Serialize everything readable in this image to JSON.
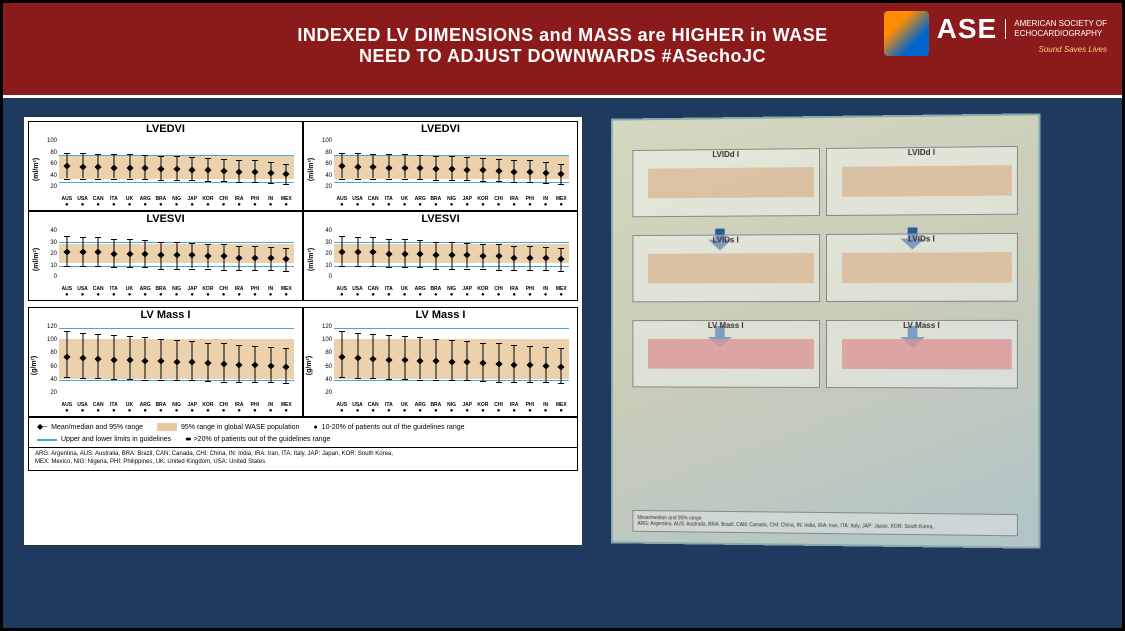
{
  "header": {
    "title_l1": "INDEXED LV DIMENSIONS and MASS are HIGHER in WASE",
    "title_l2": "NEED TO ADJUST DOWNWARDS  #ASechoJC",
    "logo_main": "ASE",
    "logo_sub_l1": "AMERICAN SOCIETY OF",
    "logo_sub_l2": "ECHOCARDIOGRAPHY",
    "logo_tag": "Sound Saves Lives"
  },
  "countries": [
    "AUS",
    "USA",
    "CAN",
    "ITA",
    "UK",
    "ARG",
    "BRA",
    "NIG",
    "JAP",
    "KOR",
    "CHI",
    "IRA",
    "PHI",
    "IN",
    "MEX"
  ],
  "charts": {
    "lvedvi": {
      "title": "LVEDVI",
      "unit": "(ml/m²)",
      "ymin": 20,
      "ymax": 100,
      "yticks": [
        20,
        40,
        60,
        80,
        100
      ],
      "shade_lo": 40,
      "shade_hi": 75,
      "line_lo": 35,
      "line_hi": 75,
      "means": [
        58,
        57,
        57,
        56,
        56,
        55,
        54,
        54,
        53,
        52,
        51,
        50,
        50,
        48,
        46
      ],
      "err_lo": [
        40,
        40,
        40,
        40,
        40,
        39,
        38,
        38,
        38,
        37,
        36,
        35,
        35,
        34,
        32
      ],
      "err_hi": [
        78,
        78,
        77,
        76,
        76,
        75,
        74,
        73,
        72,
        70,
        69,
        68,
        67,
        65,
        62
      ]
    },
    "lvesvi": {
      "title": "LVESVI",
      "unit": "(ml/m²)",
      "ymin": 0,
      "ymax": 40,
      "yticks": [
        0,
        10,
        20,
        30,
        40
      ],
      "shade_lo": 14,
      "shade_hi": 28,
      "line_lo": 12,
      "line_hi": 30,
      "means": [
        22,
        22,
        22,
        21,
        21,
        21,
        20,
        20,
        20,
        19,
        19,
        18,
        18,
        18,
        17
      ],
      "err_lo": [
        12,
        12,
        12,
        11,
        11,
        11,
        10,
        10,
        10,
        10,
        9,
        9,
        9,
        9,
        8
      ],
      "err_hi": [
        34,
        33,
        33,
        32,
        32,
        31,
        30,
        30,
        29,
        28,
        28,
        27,
        27,
        26,
        25
      ]
    },
    "lvmassi": {
      "title": "LV Mass I",
      "unit": "(g/m²)",
      "ymin": 20,
      "ymax": 120,
      "yticks": [
        20,
        40,
        60,
        80,
        100,
        120
      ],
      "shade_lo": 45,
      "shade_hi": 100,
      "line_lo": 44,
      "line_hi": 115,
      "means": [
        75,
        74,
        73,
        72,
        71,
        70,
        70,
        69,
        68,
        67,
        66,
        65,
        64,
        63,
        62
      ],
      "err_lo": [
        48,
        47,
        47,
        46,
        46,
        45,
        45,
        44,
        44,
        43,
        42,
        42,
        41,
        41,
        40
      ],
      "err_hi": [
        110,
        108,
        107,
        105,
        104,
        102,
        100,
        99,
        97,
        95,
        94,
        92,
        90,
        89,
        87
      ]
    }
  },
  "legend": {
    "l1": "Mean/median and 95% range",
    "l2": "Upper and lower limits in guidelines",
    "l3": "95% range in global WASE population",
    "l4": "10-20% of patients out of the guidelines range",
    "l5": ">20% of patients out of the guidelines range"
  },
  "footnote": {
    "l1": "ARG: Argentina, AUS: Australia, BRA: Brazil, CAN: Canada, CHI: China, IN: India, IRA: Iran, ITA: Italy, JAP: Japan, KOR: South Korea,",
    "l2": "MEX: Mexico, NIG: Nigeria, PHI: Philippines, UK: United Kingdom, USA: United States"
  },
  "right_charts": {
    "r1a": "LVIDd I",
    "r1b": "LVIDd I",
    "r2a": "LVIDs I",
    "r2b": "LVIDs I",
    "r3a": "LV Mass I",
    "r3b": "LV Mass I"
  },
  "colors": {
    "band": "#8b1a1a",
    "bg": "#1e3a5f",
    "shade": "#e8c9a0",
    "guideline": "#49a7d8",
    "arrow": "#2a5a9a"
  }
}
